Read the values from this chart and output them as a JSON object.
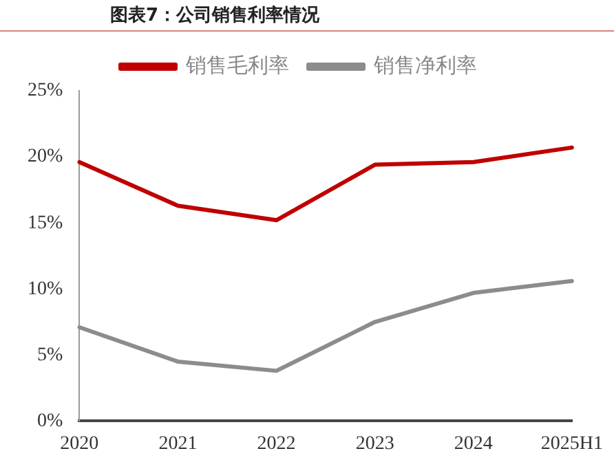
{
  "chart_data": {
    "type": "line",
    "title": "图表7：公司销售利率情况",
    "categories": [
      "2020",
      "2021",
      "2022",
      "2023",
      "2024",
      "2025H1"
    ],
    "series": [
      {
        "name": "销售毛利率",
        "color": "#c00000",
        "values": [
          19.6,
          16.3,
          15.2,
          19.4,
          19.6,
          20.7
        ]
      },
      {
        "name": "销售净利率",
        "color": "#8c8c8c",
        "values": [
          7.1,
          4.5,
          3.8,
          7.5,
          9.7,
          10.6
        ]
      }
    ],
    "ylim": [
      0,
      25
    ],
    "yticks": [
      {
        "value": 0,
        "label": "0%"
      },
      {
        "value": 5,
        "label": "5%"
      },
      {
        "value": 10,
        "label": "10%"
      },
      {
        "value": 15,
        "label": "15%"
      },
      {
        "value": 20,
        "label": "20%"
      },
      {
        "value": 25,
        "label": "25%"
      }
    ],
    "grid": false,
    "legend": "top",
    "marker": "none"
  }
}
